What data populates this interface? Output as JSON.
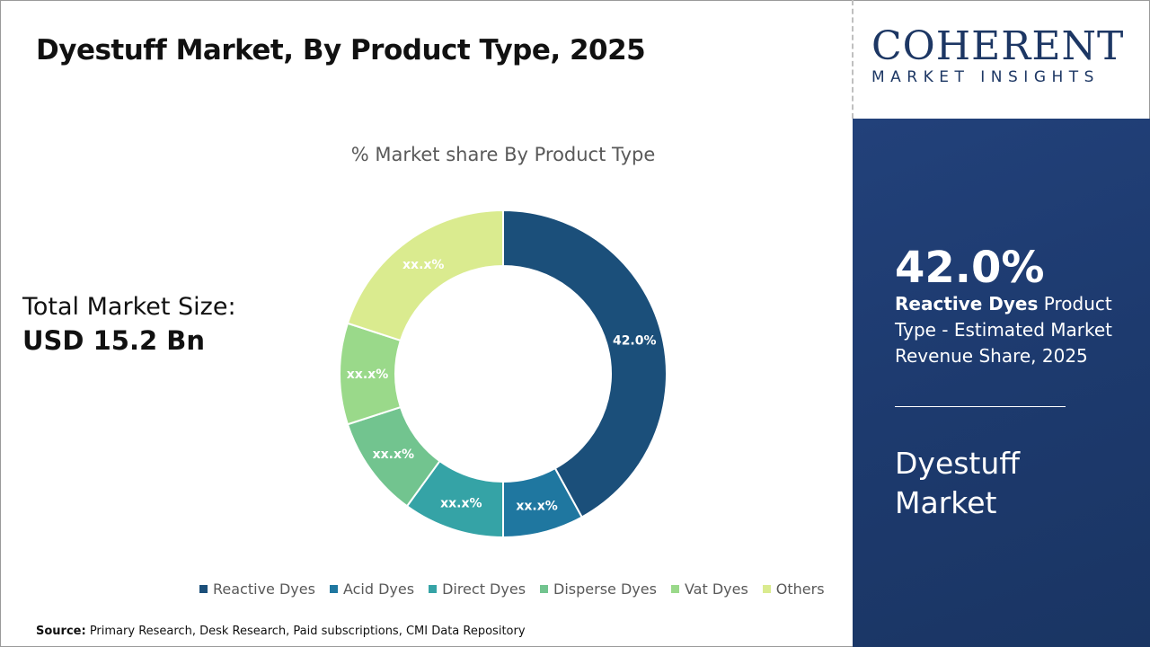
{
  "title": "Dyestuff Market, By Product Type, 2025",
  "total_label": "Total Market Size:",
  "total_value": "USD 15.2 Bn",
  "logo": {
    "main": "COHERENT",
    "sub": "MARKET INSIGHTS"
  },
  "panel": {
    "kpi": "42.0%",
    "desc_bold": "Reactive Dyes",
    "desc_rest": " Product Type - Estimated Market Revenue Share, 2025",
    "market": "Dyestuff Market"
  },
  "source": {
    "label": "Source:",
    "text": " Primary Research, Desk Research, Paid subscriptions, CMI Data Repository"
  },
  "chart_data": {
    "type": "pie",
    "donut": true,
    "title": "% Market share By Product Type",
    "categories": [
      "Reactive Dyes",
      "Acid Dyes",
      "Direct Dyes",
      "Disperse Dyes",
      "Vat Dyes",
      "Others"
    ],
    "values": [
      42,
      8,
      10,
      10,
      10,
      20
    ],
    "data_labels": [
      "42.0%",
      "xx.x%",
      "xx.x%",
      "xx.x%",
      "xx.x%",
      "xx.x%"
    ],
    "colors": [
      "#1b4f7a",
      "#1f77a0",
      "#35a3a6",
      "#72c48f",
      "#9ad98a",
      "#daeb8f"
    ],
    "legend": "bottom"
  }
}
